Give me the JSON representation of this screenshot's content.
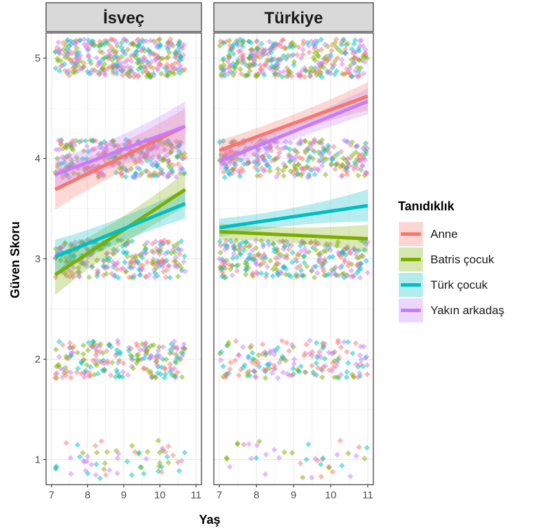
{
  "chart_data": {
    "type": "scatter",
    "xlabel": "Yaş",
    "ylabel": "Güven Skoru",
    "xlim": [
      6.85,
      11.15
    ],
    "ylim": [
      0.75,
      5.25
    ],
    "x_ticks": [
      7,
      8,
      9,
      10,
      11
    ],
    "y_ticks": [
      1,
      2,
      3,
      4,
      5
    ],
    "grid": true,
    "legend": {
      "title": "Tanıdıklık",
      "position": "right"
    },
    "series": [
      {
        "name": "Anne",
        "color": "#F8766D"
      },
      {
        "name": "Batris çocuk",
        "color": "#7CAE00"
      },
      {
        "name": "Türk çocuk",
        "color": "#00BFC4"
      },
      {
        "name": "Yakın arkadaş",
        "color": "#C77CFF"
      }
    ],
    "panels": [
      {
        "title": "İsveç",
        "x_range": [
          7.1,
          10.7
        ],
        "point_counts": {
          "5": 340,
          "4": 300,
          "3": 260,
          "2": 210,
          "1": 60
        },
        "fits": [
          {
            "series": "Anne",
            "x": [
              7.1,
              10.7
            ],
            "y": [
              3.69,
              4.32
            ],
            "ci_half": [
              0.2,
              0.18
            ]
          },
          {
            "series": "Yakın arkadaş",
            "x": [
              7.1,
              10.7
            ],
            "y": [
              3.84,
              4.32
            ],
            "ci_half": [
              0.16,
              0.25
            ]
          },
          {
            "series": "Batris çocuk",
            "x": [
              7.1,
              10.7
            ],
            "y": [
              2.84,
              3.69
            ],
            "ci_half": [
              0.2,
              0.17
            ]
          },
          {
            "series": "Türk çocuk",
            "x": [
              7.1,
              10.7
            ],
            "y": [
              3.02,
              3.55
            ],
            "ci_half": [
              0.17,
              0.15
            ]
          }
        ]
      },
      {
        "title": "Türkiye",
        "x_range": [
          7.0,
          11.0
        ],
        "point_counts": {
          "5": 340,
          "4": 300,
          "3": 280,
          "2": 170,
          "1": 40
        },
        "fits": [
          {
            "series": "Anne",
            "x": [
              7.0,
              11.0
            ],
            "y": [
              4.08,
              4.62
            ],
            "ci_half": [
              0.1,
              0.14
            ]
          },
          {
            "series": "Yakın arkadaş",
            "x": [
              7.0,
              11.0
            ],
            "y": [
              3.97,
              4.57
            ],
            "ci_half": [
              0.1,
              0.13
            ]
          },
          {
            "series": "Türk çocuk",
            "x": [
              7.0,
              11.0
            ],
            "y": [
              3.31,
              3.53
            ],
            "ci_half": [
              0.09,
              0.16
            ]
          },
          {
            "series": "Batris çocuk",
            "x": [
              7.0,
              11.0
            ],
            "y": [
              3.27,
              3.2
            ],
            "ci_half": [
              0.08,
              0.14
            ]
          }
        ]
      }
    ]
  }
}
